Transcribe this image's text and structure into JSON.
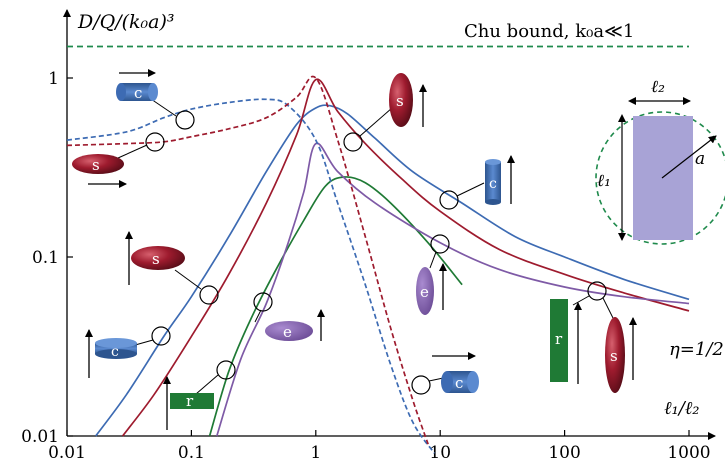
{
  "chart_data": {
    "type": "line",
    "title": "",
    "ylabel": "D/Q/(k₀a)³",
    "xlabel": "ℓ₁/ℓ₂",
    "x_scale": "log",
    "y_scale": "log",
    "xlim": [
      0.01,
      1000
    ],
    "ylim": [
      0.01,
      2
    ],
    "x_ticks": [
      0.01,
      0.1,
      1,
      10,
      100,
      1000
    ],
    "x_tick_labels": [
      "0.01",
      "0.1",
      "1",
      "10",
      "100",
      "1000"
    ],
    "y_ticks": [
      0.01,
      0.1,
      1
    ],
    "y_tick_labels": [
      "0.01",
      "0.1",
      "1"
    ],
    "grid": false,
    "legend": "none",
    "reference_line": {
      "label": "Chu bound, k₀a≪1",
      "y": 1.5,
      "color": "#1f8a4c",
      "style": "dashed"
    },
    "annotations": {
      "eta": "η=1/2",
      "inset_l1": "ℓ₁",
      "inset_l2": "ℓ₂",
      "inset_a": "a"
    },
    "series": [
      {
        "marker": "c",
        "shape": "cylinder",
        "orientation": "along axis",
        "color": "#3d6bb3",
        "style": "solid",
        "x": [
          0.017,
          0.03,
          0.06,
          0.1,
          0.2,
          0.4,
          0.7,
          1.0,
          1.3,
          1.8,
          3,
          6,
          15,
          40,
          100,
          300,
          1000
        ],
        "y": [
          0.01,
          0.017,
          0.036,
          0.06,
          0.13,
          0.3,
          0.55,
          0.68,
          0.7,
          0.63,
          0.46,
          0.3,
          0.2,
          0.13,
          0.1,
          0.075,
          0.058
        ]
      },
      {
        "marker": "s",
        "shape": "spheroid",
        "orientation": "along axis",
        "color": "#9e1b2e",
        "style": "solid",
        "x": [
          0.028,
          0.05,
          0.1,
          0.2,
          0.4,
          0.7,
          1.0,
          1.5,
          2.5,
          5,
          10,
          30,
          100,
          300,
          1000
        ],
        "y": [
          0.01,
          0.017,
          0.036,
          0.08,
          0.2,
          0.48,
          0.98,
          0.65,
          0.43,
          0.27,
          0.18,
          0.11,
          0.08,
          0.063,
          0.05
        ]
      },
      {
        "marker": "r",
        "shape": "rectangle",
        "orientation": "along axis",
        "color": "#1f7a35",
        "style": "solid",
        "x": [
          0.14,
          0.2,
          0.3,
          0.5,
          0.8,
          1.2,
          1.7,
          2.5,
          4,
          8,
          15
        ],
        "y": [
          0.01,
          0.023,
          0.045,
          0.09,
          0.16,
          0.25,
          0.28,
          0.26,
          0.2,
          0.12,
          0.07
        ]
      },
      {
        "marker": "e",
        "shape": "ellipse",
        "orientation": "along axis",
        "color": "#7e5aa6",
        "style": "solid",
        "x": [
          0.16,
          0.25,
          0.4,
          0.6,
          0.8,
          1.0,
          1.5,
          3,
          10,
          30,
          100,
          300,
          1000
        ],
        "y": [
          0.01,
          0.027,
          0.055,
          0.12,
          0.23,
          0.43,
          0.3,
          0.2,
          0.12,
          0.085,
          0.068,
          0.06,
          0.055
        ]
      },
      {
        "marker": "c",
        "shape": "cylinder",
        "orientation": "transverse",
        "color": "#3d6bb3",
        "style": "dashed",
        "x": [
          0.01,
          0.03,
          0.06,
          0.1,
          0.2,
          0.4,
          0.6,
          1.0,
          1.5,
          2.5,
          4,
          6,
          9
        ],
        "y": [
          0.45,
          0.5,
          0.6,
          0.67,
          0.73,
          0.76,
          0.7,
          0.45,
          0.2,
          0.07,
          0.025,
          0.012,
          0.008
        ]
      },
      {
        "marker": "s",
        "shape": "spheroid",
        "orientation": "transverse",
        "color": "#9e1b2e",
        "style": "dashed",
        "x": [
          0.01,
          0.03,
          0.06,
          0.1,
          0.2,
          0.4,
          0.7,
          1.0,
          1.5,
          2.5,
          4,
          6,
          8
        ],
        "y": [
          0.42,
          0.43,
          0.44,
          0.47,
          0.52,
          0.6,
          0.78,
          1.0,
          0.45,
          0.13,
          0.04,
          0.016,
          0.009
        ]
      }
    ],
    "colors": {
      "blue": "#3d6bb3",
      "red": "#9e1b2e",
      "green": "#1f7a35",
      "purple": "#7e5aa6",
      "inset": "#a8a3d6",
      "chu": "#1f8a4c"
    }
  }
}
